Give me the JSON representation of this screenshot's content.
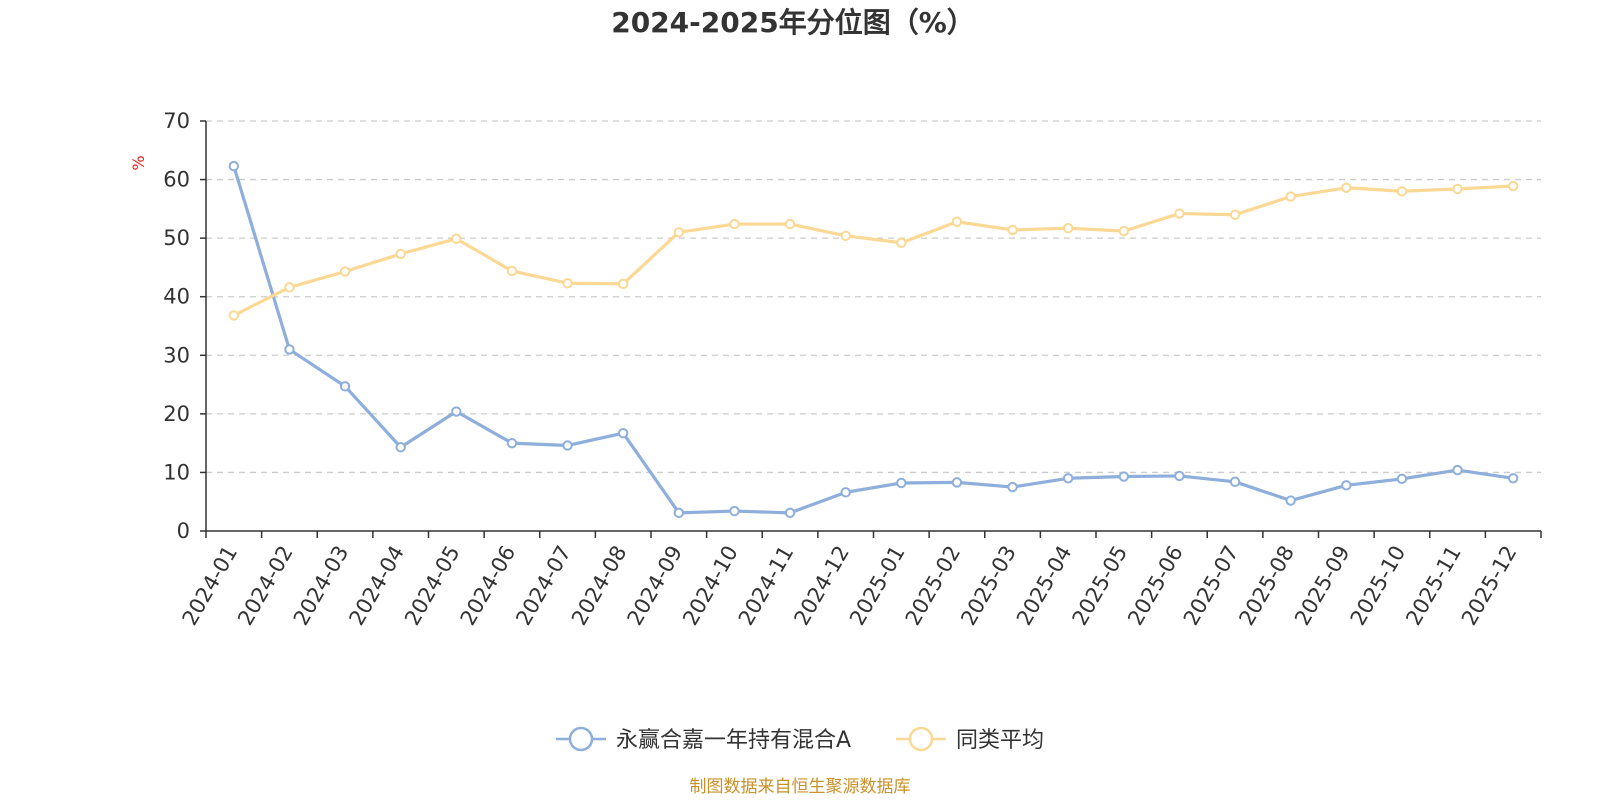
{
  "chart_data": {
    "type": "line",
    "title": "2024-2025年分位图（%）",
    "y_unit_label": "%",
    "ylim": [
      0,
      70
    ],
    "yticks": [
      0,
      10,
      20,
      30,
      40,
      50,
      60,
      70
    ],
    "grid": true,
    "legend_position": "bottom",
    "categories": [
      "2024-01",
      "2024-02",
      "2024-03",
      "2024-04",
      "2024-05",
      "2024-06",
      "2024-07",
      "2024-08",
      "2024-09",
      "2024-10",
      "2024-11",
      "2024-12",
      "2025-01",
      "2025-02",
      "2025-03",
      "2025-04",
      "2025-05",
      "2025-06",
      "2025-07",
      "2025-08",
      "2025-09",
      "2025-10",
      "2025-11",
      "2025-12"
    ],
    "series": [
      {
        "name": "永赢合嘉一年持有混合A",
        "color": "#8eaedb",
        "values": [
          62.3,
          31.0,
          24.7,
          14.3,
          20.4,
          15.0,
          14.6,
          16.7,
          3.1,
          3.4,
          3.1,
          6.6,
          8.2,
          8.3,
          7.5,
          9.0,
          9.3,
          9.4,
          8.4,
          5.2,
          7.8,
          8.9,
          10.4,
          9.0
        ]
      },
      {
        "name": "同类平均",
        "color": "#fbd893",
        "values": [
          36.8,
          41.6,
          44.3,
          47.3,
          49.9,
          44.4,
          42.3,
          42.2,
          51.0,
          52.4,
          52.4,
          50.4,
          49.2,
          52.8,
          51.4,
          51.7,
          51.2,
          54.2,
          54.0,
          57.1,
          58.6,
          58.0,
          58.4,
          58.9
        ]
      }
    ],
    "source": "制图数据来自恒生聚源数据库",
    "source_color": "#c9912a",
    "unit_color": "#e8231f",
    "axis_color": "#333333",
    "grid_color": "#cccccc"
  }
}
